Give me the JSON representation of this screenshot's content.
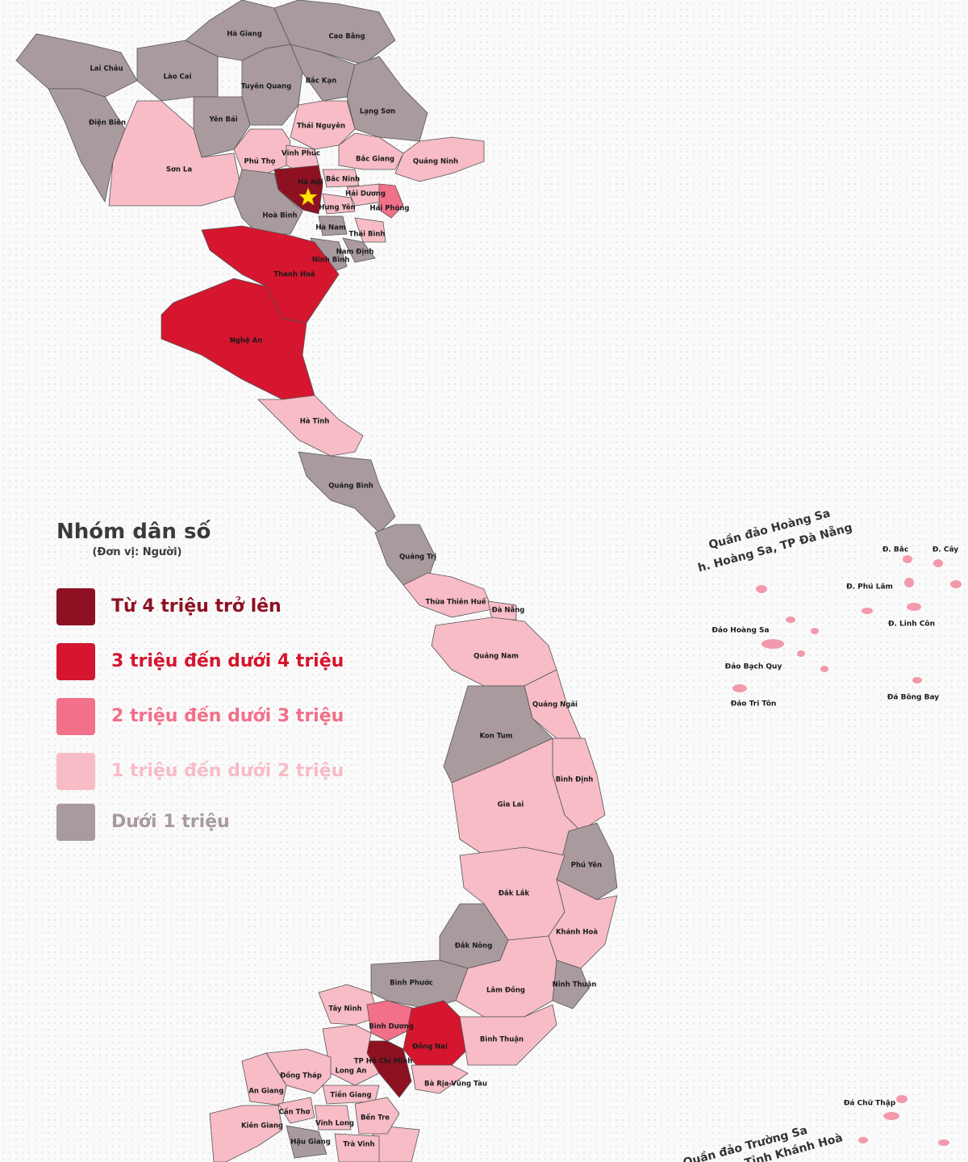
{
  "legend": {
    "title": "Nhóm dân số",
    "subtitle": "(Đơn vị: Người)",
    "groups": [
      {
        "label": "Từ 4 triệu trở lên",
        "color": "#8e1122"
      },
      {
        "label": "3 triệu đến dưới 4 triệu",
        "color": "#d5162e"
      },
      {
        "label": "2 triệu đến dưới 3 triệu",
        "color": "#f27089"
      },
      {
        "label": "1 triệu đến dưới 2 triệu",
        "color": "#f7bcc6"
      },
      {
        "label": "Dưới 1 triệu",
        "color": "#a99a9e"
      }
    ]
  },
  "provinces": [
    {
      "name": "Lai Châu",
      "group": 4
    },
    {
      "name": "Lào Cai",
      "group": 4
    },
    {
      "name": "Hà Giang",
      "group": 4
    },
    {
      "name": "Cao Bằng",
      "group": 4
    },
    {
      "name": "Tuyên Quang",
      "group": 4
    },
    {
      "name": "Bắc Kạn",
      "group": 4
    },
    {
      "name": "Lạng  Sơn",
      "group": 4
    },
    {
      "name": "Điện Biên",
      "group": 4
    },
    {
      "name": "Yên Bái",
      "group": 4
    },
    {
      "name": "Sơn La",
      "group": 3
    },
    {
      "name": "Thái Nguyên",
      "group": 3
    },
    {
      "name": "Phú Thọ",
      "group": 3
    },
    {
      "name": "Vĩnh Phúc",
      "group": 3
    },
    {
      "name": "Bắc Giang",
      "group": 3
    },
    {
      "name": "Quảng Ninh",
      "group": 3
    },
    {
      "name": "Hà Nội",
      "group": 0
    },
    {
      "name": "Bắc Ninh",
      "group": 3
    },
    {
      "name": "Hải Dương",
      "group": 3
    },
    {
      "name": "Hải Phòng",
      "group": 2
    },
    {
      "name": "Hưng Yên",
      "group": 3
    },
    {
      "name": "Hoà Bình",
      "group": 4
    },
    {
      "name": "Hà Nam",
      "group": 4
    },
    {
      "name": "Thái Bình",
      "group": 3
    },
    {
      "name": "Nam Định",
      "group": 4
    },
    {
      "name": "Ninh Bình",
      "group": 4
    },
    {
      "name": "Thanh Hoá",
      "group": 1
    },
    {
      "name": "Nghệ An",
      "group": 1
    },
    {
      "name": "Hà Tĩnh",
      "group": 3
    },
    {
      "name": "Quảng Bình",
      "group": 4
    },
    {
      "name": "Quảng Trị",
      "group": 4
    },
    {
      "name": "Thừa Thiên Huế",
      "group": 3
    },
    {
      "name": "Đà Nẵng",
      "group": 3
    },
    {
      "name": "Quảng Nam",
      "group": 3
    },
    {
      "name": "Quảng Ngãi",
      "group": 3
    },
    {
      "name": "Kon Tum",
      "group": 4
    },
    {
      "name": "Bình Định",
      "group": 3
    },
    {
      "name": "Gia Lai",
      "group": 3
    },
    {
      "name": "Phú Yên",
      "group": 4
    },
    {
      "name": "Đắk Lắk",
      "group": 3
    },
    {
      "name": "Khánh Hoà",
      "group": 3
    },
    {
      "name": "Đắk Nông",
      "group": 4
    },
    {
      "name": "Ninh Thuận",
      "group": 4
    },
    {
      "name": "Lâm Đồng",
      "group": 3
    },
    {
      "name": "Bình Phước",
      "group": 4
    },
    {
      "name": "Tây Ninh",
      "group": 3
    },
    {
      "name": "Bình Dương",
      "group": 2
    },
    {
      "name": "Đồng Nai",
      "group": 1
    },
    {
      "name": "Bình Thuận",
      "group": 3
    },
    {
      "name": "TP Hồ Chí Minh",
      "group": 0
    },
    {
      "name": "Bà Rịa-Vũng Tàu",
      "group": 3
    },
    {
      "name": "Long An",
      "group": 3
    },
    {
      "name": "Đồng Tháp",
      "group": 3
    },
    {
      "name": "An Giang",
      "group": 3
    },
    {
      "name": "Tiền Giang",
      "group": 3
    },
    {
      "name": "Cần Thơ",
      "group": 3
    },
    {
      "name": "Vĩnh Long",
      "group": 3
    },
    {
      "name": "Bến Tre",
      "group": 3
    },
    {
      "name": "Kiên Giang",
      "group": 3
    },
    {
      "name": "Hậu Giang",
      "group": 4
    },
    {
      "name": "Trà Vinh",
      "group": 3
    }
  ],
  "islands": {
    "hoang_sa": {
      "title": "Quần đảo Hoàng Sa",
      "subtitle": "h. Hoàng Sa, TP Đà Nẵng",
      "features": [
        "Đ. Bắc",
        "Đ. Cây",
        "Đ. Phú Lâm",
        "Đ. Linh Côn",
        "Đảo Hoàng Sa",
        "Đảo Bạch Quy",
        "Đảo Tri Tôn",
        "Đá Bông Bay"
      ]
    },
    "truong_sa": {
      "title": "Quần đảo Trường Sa",
      "subtitle": "Tỉnh Khánh Hoà",
      "features": [
        "Đá Chữ Thập"
      ]
    }
  }
}
